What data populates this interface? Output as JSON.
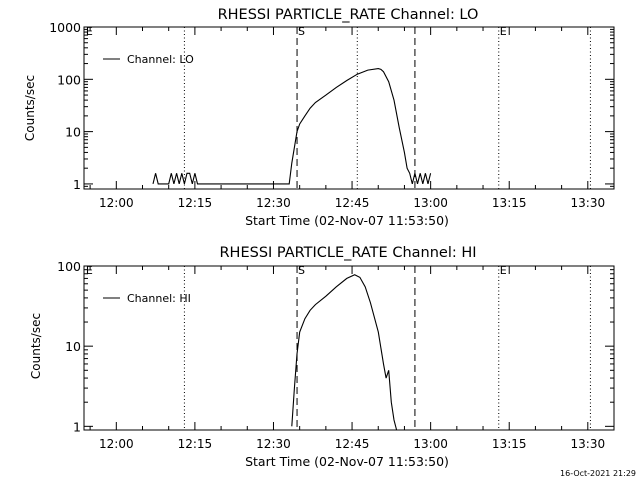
{
  "footer": {
    "timestamp": "16-Oct-2021 21:29"
  },
  "chart_data": [
    {
      "type": "line",
      "title": "RHESSI PARTICLE_RATE Channel: LO",
      "xlabel": "Start Time (02-Nov-07 11:53:50)",
      "ylabel": "Counts/sec",
      "yscale": "log",
      "xlim": [
        "11:53:50",
        "13:35:00"
      ],
      "ylim": [
        0.8,
        1000
      ],
      "x_ticks": [
        "12:00",
        "12:15",
        "12:30",
        "12:45",
        "13:00",
        "13:15",
        "13:30"
      ],
      "y_ticks": [
        "1",
        "10",
        "100",
        "1000"
      ],
      "legend": {
        "entries": [
          "Channel: LO"
        ],
        "placement": "top-left"
      },
      "markers": {
        "dotted_lines": [
          "12:13:00",
          "12:46:00",
          "13:13:00",
          "13:30:30"
        ],
        "dashed_lines": [
          "12:34:30",
          "12:57:00"
        ],
        "labels": [
          {
            "text": "E",
            "time": "11:54:00"
          },
          {
            "text": "S",
            "time": "12:34:30"
          },
          {
            "text": "E",
            "time": "13:13:00"
          }
        ]
      },
      "series": [
        {
          "name": "Channel: LO",
          "time": [
            "12:07:00",
            "12:07:30",
            "12:08:00",
            "12:08:30",
            "12:09:00",
            "12:10:00",
            "12:10:30",
            "12:11:00",
            "12:11:30",
            "12:12:00",
            "12:12:30",
            "12:13:00",
            "12:13:30",
            "12:14:00",
            "12:14:30",
            "12:15:00",
            "12:15:30",
            "12:16:00",
            "12:33:00",
            "12:33:30",
            "12:34:00",
            "12:34:30",
            "12:35:00",
            "12:36:00",
            "12:37:00",
            "12:38:00",
            "12:40:00",
            "12:42:00",
            "12:44:00",
            "12:46:00",
            "12:48:00",
            "12:50:00",
            "12:50:30",
            "12:51:00",
            "12:52:00",
            "12:53:00",
            "12:54:00",
            "12:55:00",
            "12:55:30",
            "12:56:00",
            "12:56:30",
            "12:57:00",
            "12:57:30",
            "12:58:00",
            "12:58:30",
            "12:59:00",
            "12:59:30",
            "13:00:00"
          ],
          "values": [
            1,
            1.6,
            1,
            1,
            1,
            1,
            1.6,
            1,
            1.6,
            1,
            1.6,
            1,
            1.6,
            1.6,
            1,
            1.6,
            1,
            1,
            1,
            2.5,
            5,
            10,
            14,
            20,
            28,
            36,
            50,
            70,
            95,
            125,
            150,
            160,
            155,
            140,
            90,
            40,
            12,
            4,
            2,
            1.6,
            1,
            1.6,
            1,
            1.6,
            1,
            1.6,
            1,
            1.6
          ]
        }
      ]
    },
    {
      "type": "line",
      "title": "RHESSI PARTICLE_RATE Channel: HI",
      "xlabel": "Start Time (02-Nov-07 11:53:50)",
      "ylabel": "Counts/sec",
      "yscale": "log",
      "xlim": [
        "11:53:50",
        "13:35:00"
      ],
      "ylim": [
        0.9,
        100
      ],
      "x_ticks": [
        "12:00",
        "12:15",
        "12:30",
        "12:45",
        "13:00",
        "13:15",
        "13:30"
      ],
      "y_ticks": [
        "1",
        "10",
        "100"
      ],
      "legend": {
        "entries": [
          "Channel: HI"
        ],
        "placement": "top-left"
      },
      "markers": {
        "dotted_lines": [
          "12:13:00",
          "13:13:00",
          "13:30:30"
        ],
        "dashed_lines": [
          "12:34:30",
          "12:57:00"
        ],
        "labels": [
          {
            "text": "E",
            "time": "11:54:00"
          },
          {
            "text": "S",
            "time": "12:34:30"
          },
          {
            "text": "E",
            "time": "13:13:00"
          }
        ]
      },
      "series": [
        {
          "name": "Channel: HI",
          "time": [
            "12:33:30",
            "12:34:00",
            "12:34:30",
            "12:35:00",
            "12:36:00",
            "12:37:00",
            "12:38:00",
            "12:40:00",
            "12:42:00",
            "12:44:00",
            "12:45:30",
            "12:46:30",
            "12:47:30",
            "12:48:30",
            "12:50:00",
            "12:51:00",
            "12:51:30",
            "12:52:00",
            "12:52:30",
            "12:53:00",
            "12:53:30"
          ],
          "values": [
            1,
            3,
            8,
            15,
            22,
            28,
            33,
            42,
            55,
            70,
            78,
            72,
            55,
            35,
            15,
            6,
            4,
            5,
            2,
            1.2,
            0.9
          ]
        }
      ]
    }
  ]
}
